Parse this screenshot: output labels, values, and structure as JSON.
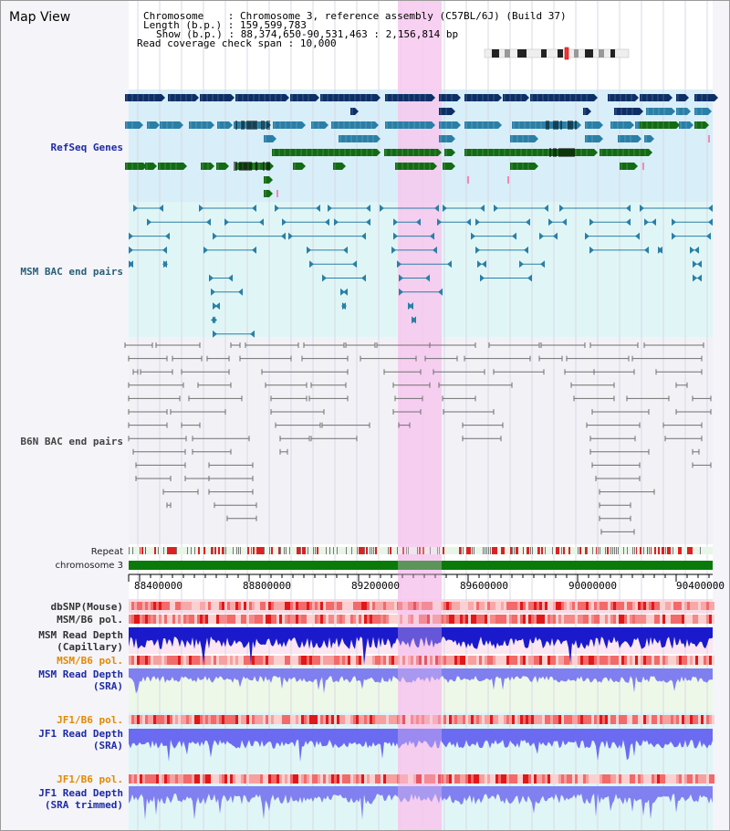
{
  "title": "Map View",
  "header": {
    "chromosome_label": "Chromosome",
    "chromosome_value": "Chromosome 3, reference assembly (C57BL/6J) (Build 37)",
    "length_label": "Length (b.p.)",
    "length_value": "159,599,783",
    "show_label": "Show (b.p.)",
    "show_value": "88,374,650-90,531,463 : 2,156,814 bp",
    "span_label": "Read coverage check span",
    "span_value": "10,000"
  },
  "tracks": {
    "refseq": "RefSeq Genes",
    "msm_bac": "MSM BAC end pairs",
    "b6n_bac": "B6N BAC end pairs",
    "repeat": "Repeat",
    "chromosome": "chromosome 3",
    "dbsnp": "dbSNP(Mouse)",
    "msm_b6_pol_1": "MSM/B6 pol.",
    "msm_read_depth_cap_1": "MSM Read Depth",
    "msm_read_depth_cap_2": "(Capillary)",
    "msm_b6_pol_2": "MSM/B6 pol.",
    "msm_read_depth_sra_1": "MSM Read Depth",
    "msm_read_depth_sra_2": "(SRA)",
    "jf1_b6_pol_1": "JF1/B6 pol.",
    "jf1_read_depth_sra_1": "JF1 Read Depth",
    "jf1_read_depth_sra_2": "(SRA)",
    "jf1_b6_pol_2": "JF1/B6 pol.",
    "jf1_read_depth_trim_1": "JF1 Read Depth",
    "jf1_read_depth_trim_2": "(SRA trimmed)"
  },
  "axis": {
    "ticks": [
      "88400000",
      "88800000",
      "89200000",
      "89600000",
      "90000000",
      "90400000"
    ]
  },
  "colors": {
    "highlight": "#f7c8ee",
    "refseq_bg": "#d8eef8",
    "msm_bg": "#e0f6f6",
    "gene_dark": "#0d2f66",
    "gene_mid": "#2a7fa6",
    "gene_green": "#136b13",
    "msm_pair": "#2a7fa6",
    "b6n_pair": "#707070",
    "chromosome_bar": "#0a7a0a",
    "depth_blue": "#1a1acc",
    "depth_light": "#6b6bf2"
  }
}
